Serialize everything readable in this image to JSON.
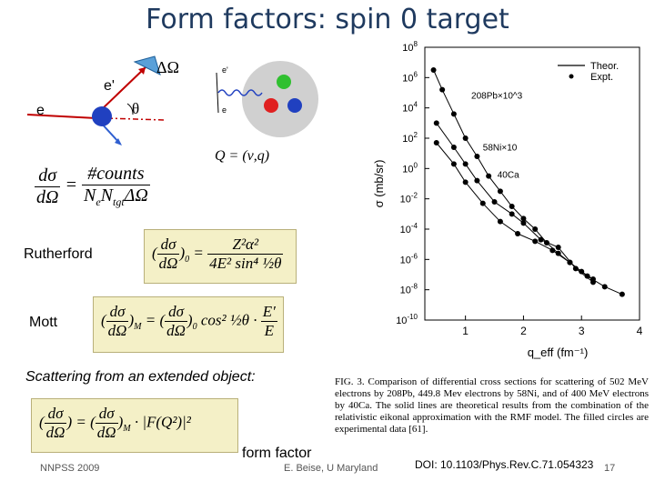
{
  "title": "Form factors: spin 0 target",
  "diagram": {
    "delta_omega": "ΔΩ",
    "e_prime": "e'",
    "e": "e",
    "theta": "θ",
    "small_e_prime": "e'",
    "small_e": "e",
    "q_label": "Q = (ν,q)"
  },
  "labels": {
    "rutherford": "Rutherford",
    "mott": "Mott",
    "extended": "Scattering from an extended object:",
    "form_factor": "form factor"
  },
  "chart_data": {
    "type": "line",
    "xlabel": "q_eff (fm⁻¹)",
    "ylabel": "σ (mb/sr)",
    "x_ticks": [
      "1",
      "2",
      "3",
      "4"
    ],
    "y_ticks": [
      "10^8",
      "10^6",
      "10^4",
      "10^2",
      "10^0",
      "10^-2",
      "10^-4",
      "10^-6",
      "10^-8",
      "10^-10"
    ],
    "xlim": [
      0.3,
      4.0
    ],
    "ylim_log10": [
      -10,
      8
    ],
    "legend": [
      "Theor.",
      "Expt."
    ],
    "series": [
      {
        "name": "208Pb×10^3",
        "x": [
          0.45,
          0.6,
          0.8,
          1.0,
          1.2,
          1.4,
          1.6,
          1.8,
          2.0,
          2.2,
          2.4,
          2.6,
          2.8,
          3.0,
          3.2
        ],
        "log10y": [
          6.5,
          5.2,
          3.6,
          2.0,
          0.8,
          -0.5,
          -1.5,
          -2.5,
          -3.3,
          -4.0,
          -4.9,
          -5.6,
          -6.2,
          -6.8,
          -7.3
        ]
      },
      {
        "name": "58Ni×10",
        "x": [
          0.5,
          0.8,
          1.0,
          1.2,
          1.5,
          1.8,
          2.0,
          2.3,
          2.6,
          2.9,
          3.2
        ],
        "log10y": [
          3.0,
          1.4,
          0.3,
          -0.8,
          -2.2,
          -3.0,
          -3.6,
          -4.7,
          -5.2,
          -6.6,
          -7.5
        ]
      },
      {
        "name": "40Ca",
        "x": [
          0.5,
          0.8,
          1.0,
          1.3,
          1.6,
          1.9,
          2.2,
          2.5,
          2.8,
          3.1,
          3.4,
          3.7
        ],
        "log10y": [
          1.7,
          0.3,
          -0.9,
          -2.3,
          -3.5,
          -4.3,
          -4.8,
          -5.4,
          -6.2,
          -7.1,
          -7.8,
          -8.3
        ]
      }
    ]
  },
  "caption": "FIG. 3. Comparison of differential cross sections for scattering of 502 MeV electrons by 208Pb, 449.8 Mev electrons by 58Ni, and of 400 MeV electrons by 40Ca. The solid lines are theoretical results from the combination of the relativistic eikonal approximation with the RMF model. The filled circles are experimental data [61].",
  "footer": {
    "left": "NNPSS 2009",
    "center": "E. Beise, U Maryland",
    "doi": "DOI: 10.1103/Phys.Rev.C.71.054323",
    "page": "17"
  }
}
